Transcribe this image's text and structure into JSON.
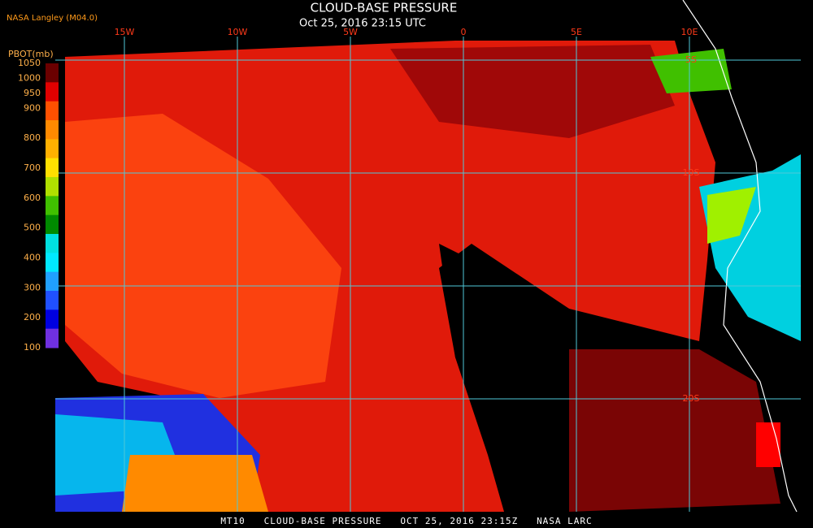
{
  "header": {
    "title": "CLOUD-BASE PRESSURE",
    "subtitle": "Oct 25, 2016 23:15 UTC",
    "source": "NASA Langley (M04.0)"
  },
  "colorbar": {
    "label": "PBOT(mb)",
    "ticks": [
      1050,
      1000,
      950,
      900,
      800,
      700,
      600,
      500,
      400,
      300,
      200,
      100
    ],
    "colors": [
      "#6b0000",
      "#e00000",
      "#ff5000",
      "#ff8a00",
      "#ffb000",
      "#ffe000",
      "#b0e000",
      "#40c000",
      "#008a00",
      "#00e0e0",
      "#00e8ff",
      "#20a0ff",
      "#2050ff",
      "#0000e0",
      "#7030e0"
    ]
  },
  "map": {
    "lon_labels": [
      "15W",
      "10W",
      "5W",
      "0",
      "5E",
      "10E"
    ],
    "lat_labels": [
      "5S",
      "10S",
      null,
      "20S"
    ]
  },
  "footer": "MT10   CLOUD-BASE PRESSURE   OCT 25, 2016 23:15Z   NASA LARC"
}
